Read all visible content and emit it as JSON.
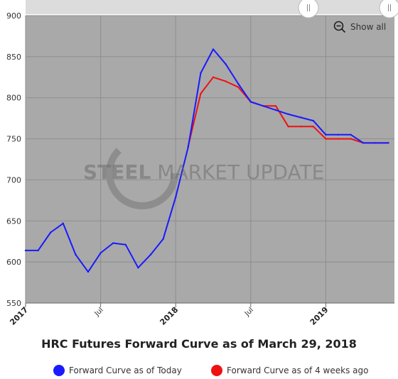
{
  "chart_data": {
    "type": "line",
    "title": "HRC Futures Forward Curve as of March 29, 2018",
    "ylim": [
      550,
      900
    ],
    "yticks": [
      550,
      600,
      650,
      700,
      750,
      800,
      850,
      900
    ],
    "xticks": [
      {
        "label": "2017",
        "year": true
      },
      {
        "label": "Jul",
        "year": false
      },
      {
        "label": "2018",
        "year": true
      },
      {
        "label": "Jul",
        "year": false
      },
      {
        "label": "2019",
        "year": true
      },
      {
        "label": "Jul",
        "year": false
      }
    ],
    "series": [
      {
        "name": "Forward Curve as of Today",
        "color": "#1a1aff",
        "points": [
          [
            "2017-01",
            614
          ],
          [
            "2017-02",
            614
          ],
          [
            "2017-03",
            636
          ],
          [
            "2017-04",
            647
          ],
          [
            "2017-05",
            609
          ],
          [
            "2017-06",
            588
          ],
          [
            "2017-07",
            611
          ],
          [
            "2017-08",
            623
          ],
          [
            "2017-09",
            621
          ],
          [
            "2017-10",
            593
          ],
          [
            "2017-11",
            609
          ],
          [
            "2017-12",
            628
          ],
          [
            "2018-01",
            679
          ],
          [
            "2018-02",
            740
          ],
          [
            "2018-03",
            830
          ],
          [
            "2018-04",
            859
          ],
          [
            "2018-05",
            841
          ],
          [
            "2018-06",
            817
          ],
          [
            "2018-07",
            795
          ],
          [
            "2018-08",
            790
          ],
          [
            "2018-09",
            785
          ],
          [
            "2018-10",
            780
          ],
          [
            "2018-11",
            776
          ],
          [
            "2018-12",
            772
          ],
          [
            "2019-01",
            755
          ],
          [
            "2019-02",
            755
          ],
          [
            "2019-03",
            755
          ],
          [
            "2019-04",
            745
          ],
          [
            "2019-05",
            745
          ],
          [
            "2019-06",
            745
          ]
        ]
      },
      {
        "name": "Forward Curve as of 4 weeks ago",
        "color": "#ee1111",
        "points": [
          [
            "2018-02",
            741
          ],
          [
            "2018-03",
            805
          ],
          [
            "2018-04",
            825
          ],
          [
            "2018-05",
            820
          ],
          [
            "2018-06",
            813
          ],
          [
            "2018-07",
            795
          ],
          [
            "2018-08",
            790
          ],
          [
            "2018-09",
            790
          ],
          [
            "2018-10",
            765
          ],
          [
            "2018-11",
            765
          ],
          [
            "2018-12",
            765
          ],
          [
            "2019-01",
            750
          ],
          [
            "2019-02",
            750
          ],
          [
            "2019-03",
            750
          ],
          [
            "2019-04",
            745
          ],
          [
            "2019-05",
            745
          ],
          [
            "2019-06",
            745
          ]
        ]
      }
    ],
    "grid": true,
    "legend": "bottom"
  },
  "watermark": {
    "bold": "STEEL",
    "light": "MARKET UPDATE"
  },
  "controls": {
    "show_all": "Show all"
  },
  "colors": {
    "plot_bg": "#a9a9a9",
    "navigator_bg": "#dcdcdc"
  }
}
